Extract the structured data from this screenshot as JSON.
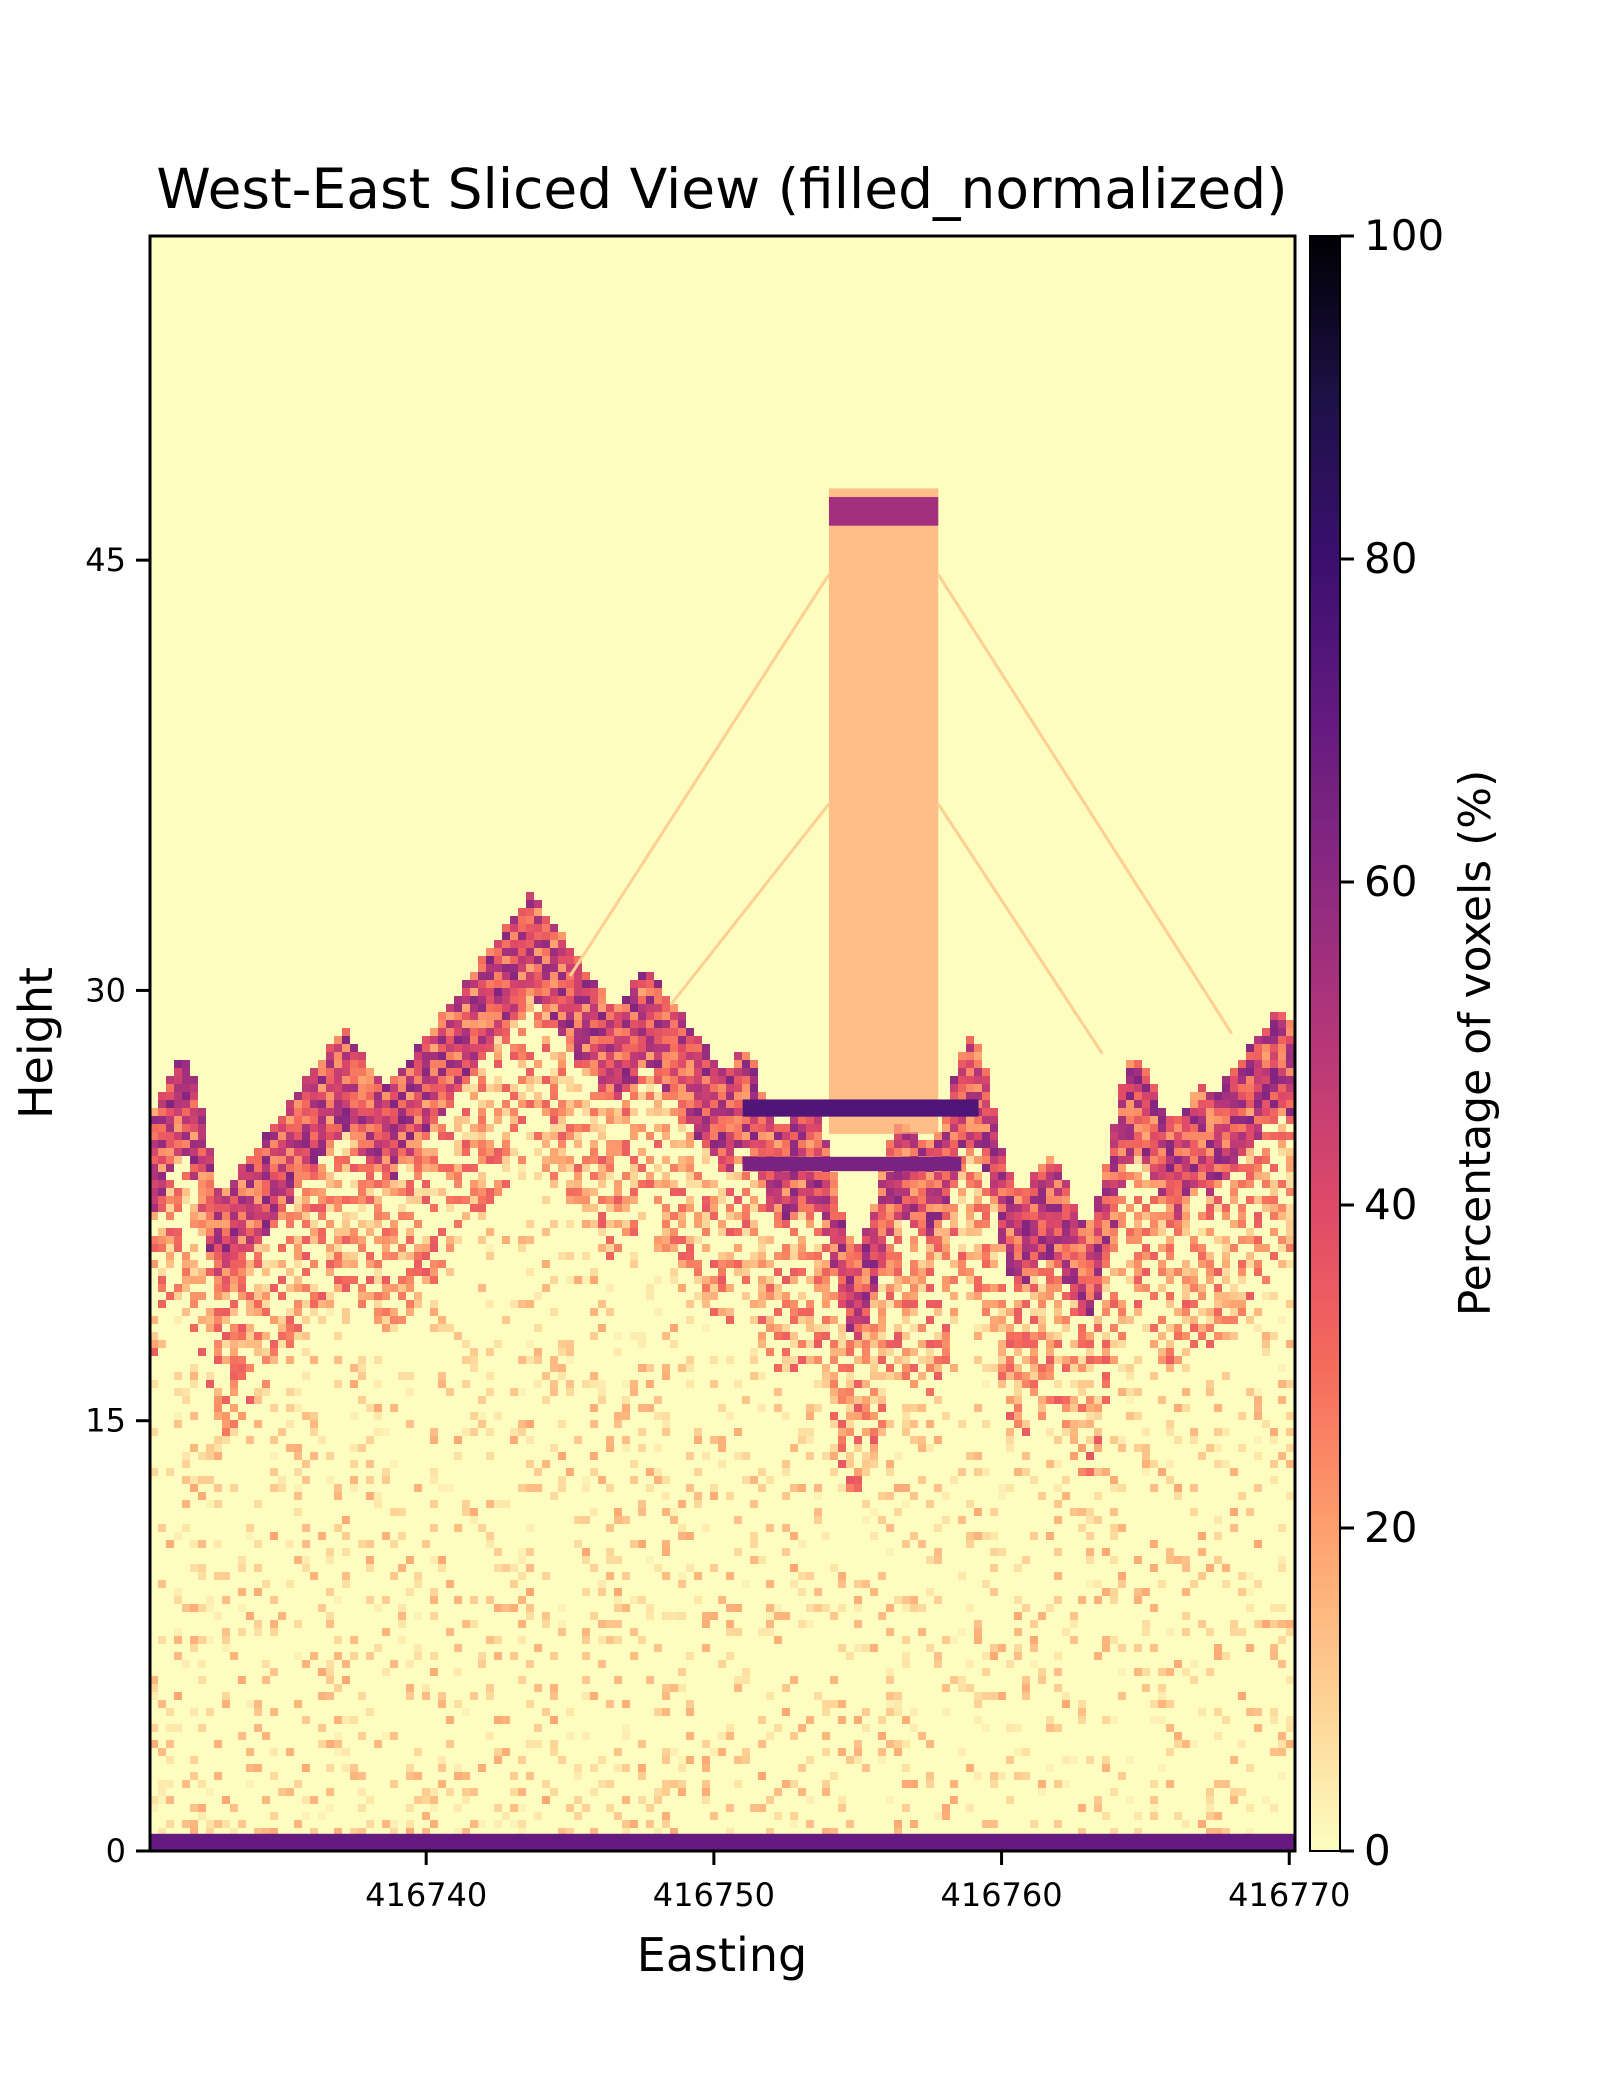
{
  "chart_data": {
    "type": "heatmap",
    "title": "West-East Sliced View (filled_normalized)",
    "xlabel": "Easting",
    "ylabel": "Height",
    "xlim": [
      416730.4,
      416770.2
    ],
    "ylim": [
      0,
      56.3
    ],
    "x_ticks": [
      416740,
      416750,
      416760,
      416770
    ],
    "y_ticks": [
      0,
      15,
      30,
      45
    ],
    "colorbar": {
      "label": "Percentage of voxels (%)",
      "range": [
        0,
        100
      ],
      "ticks": [
        0,
        20,
        40,
        60,
        80,
        100
      ],
      "colormap": "magma_r",
      "stops": [
        "#fcfdbf",
        "#fecf92",
        "#fe9f6d",
        "#f56b5c",
        "#de4968",
        "#b73779",
        "#8c2981",
        "#641a80",
        "#3b0f70",
        "#1d1147",
        "#000004"
      ]
    },
    "background_value": 0,
    "grid": false,
    "features": [
      {
        "kind": "tower",
        "x_range": [
          416754,
          416757.8
        ],
        "y_range": [
          25,
          47.5
        ],
        "value": 18
      },
      {
        "kind": "tower-cap",
        "x_range": [
          416754,
          416757.8
        ],
        "y_range": [
          46.2,
          47.2
        ],
        "value": 55
      },
      {
        "kind": "platform-beam",
        "x_range": [
          416751,
          416759.2
        ],
        "y_range": [
          25.6,
          26.2
        ],
        "value": 75
      },
      {
        "kind": "platform-beam",
        "x_range": [
          416751,
          416758.6
        ],
        "y_range": [
          23.7,
          24.2
        ],
        "value": 65
      },
      {
        "kind": "ground-line",
        "x_range": [
          416730.4,
          416770.2
        ],
        "y_range": [
          0.05,
          0.6
        ],
        "value": 70
      },
      {
        "kind": "canopy-peak",
        "x": 416743.5,
        "height": 33.5,
        "value": 60
      },
      {
        "kind": "canopy-peak",
        "x": 416747.5,
        "height": 31,
        "value": 55
      },
      {
        "kind": "canopy-peak",
        "x": 416769.5,
        "height": 29.5,
        "value": 75
      },
      {
        "kind": "canopy-peak",
        "x": 416737,
        "height": 28.8,
        "value": 45
      }
    ]
  }
}
